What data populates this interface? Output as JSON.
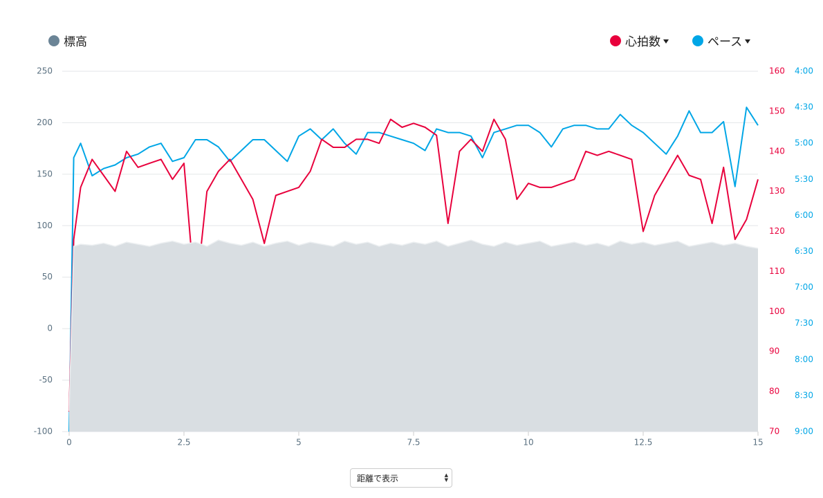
{
  "chart_data": {
    "type": "line",
    "x": [
      0,
      0.1,
      0.25,
      0.5,
      0.75,
      1,
      1.25,
      1.5,
      1.75,
      2,
      2.25,
      2.5,
      2.75,
      3,
      3.25,
      3.5,
      3.75,
      4,
      4.25,
      4.5,
      4.75,
      5,
      5.25,
      5.5,
      5.75,
      6,
      6.25,
      6.5,
      6.75,
      7,
      7.25,
      7.5,
      7.75,
      8,
      8.25,
      8.5,
      8.75,
      9,
      9.25,
      9.5,
      9.75,
      10,
      10.25,
      10.5,
      10.75,
      11,
      11.25,
      11.5,
      11.75,
      12,
      12.25,
      12.5,
      12.75,
      13,
      13.25,
      13.5,
      13.75,
      14,
      14.25,
      14.5,
      14.75,
      15
    ],
    "series": [
      {
        "name": "標高",
        "color": "#6b8496",
        "fill": "#d9dee2",
        "axis": "y",
        "area": true,
        "values": [
          -80,
          80,
          82,
          81,
          83,
          80,
          84,
          82,
          80,
          83,
          85,
          82,
          84,
          80,
          86,
          83,
          81,
          84,
          80,
          83,
          85,
          81,
          84,
          82,
          80,
          85,
          82,
          84,
          80,
          83,
          81,
          84,
          82,
          85,
          80,
          83,
          86,
          82,
          80,
          84,
          81,
          83,
          85,
          80,
          82,
          84,
          81,
          83,
          80,
          85,
          82,
          84,
          81,
          83,
          85,
          80,
          82,
          84,
          81,
          83,
          80,
          78
        ]
      },
      {
        "name": "心拍数",
        "color": "#e8003c",
        "axis": "y2",
        "values": [
          75,
          118,
          131,
          138,
          134,
          130,
          140,
          136,
          137,
          138,
          133,
          137,
          103,
          130,
          135,
          138,
          133,
          128,
          117,
          129,
          130,
          131,
          135,
          143,
          141,
          141,
          143,
          143,
          142,
          148,
          146,
          147,
          146,
          144,
          122,
          140,
          143,
          140,
          148,
          143,
          128,
          132,
          131,
          131,
          132,
          133,
          140,
          139,
          140,
          139,
          138,
          120,
          129,
          134,
          139,
          134,
          133,
          122,
          136,
          118,
          123,
          133
        ]
      },
      {
        "name": "ペース",
        "color": "#00a6e6",
        "axis": "y3",
        "values": [
          9.0,
          5.2,
          5.0,
          5.45,
          5.35,
          5.3,
          5.2,
          5.15,
          5.05,
          5.0,
          5.25,
          5.2,
          4.95,
          4.95,
          5.05,
          5.25,
          5.1,
          4.95,
          4.95,
          5.1,
          5.25,
          4.9,
          4.8,
          4.95,
          4.8,
          5.0,
          5.15,
          4.85,
          4.85,
          4.9,
          4.95,
          5.0,
          5.1,
          4.8,
          4.85,
          4.85,
          4.9,
          5.2,
          4.85,
          4.8,
          4.75,
          4.75,
          4.85,
          5.05,
          4.8,
          4.75,
          4.75,
          4.8,
          4.8,
          4.6,
          4.75,
          4.85,
          5.0,
          5.15,
          4.9,
          4.55,
          4.85,
          4.85,
          4.7,
          5.6,
          4.5,
          4.75
        ]
      }
    ],
    "xlim": [
      0,
      15
    ],
    "xticks": [
      0,
      2.5,
      5,
      7.5,
      10,
      12.5,
      15
    ],
    "ylim": [
      -100,
      250
    ],
    "yticks": [
      -100,
      -50,
      0,
      50,
      100,
      150,
      200,
      250
    ],
    "y2lim": [
      70,
      160
    ],
    "y2ticks": [
      70,
      80,
      90,
      100,
      110,
      120,
      130,
      140,
      150,
      160
    ],
    "y3lim": [
      9,
      4
    ],
    "y3ticks": [
      {
        "value": 9,
        "label": "9:00"
      },
      {
        "value": 8.5,
        "label": "8:30"
      },
      {
        "value": 8,
        "label": "8:00"
      },
      {
        "value": 7.5,
        "label": "7:30"
      },
      {
        "value": 7,
        "label": "7:00"
      },
      {
        "value": 6.5,
        "label": "6:30"
      },
      {
        "value": 6,
        "label": "6:00"
      },
      {
        "value": 5.5,
        "label": "5:30"
      },
      {
        "value": 5,
        "label": "5:00"
      },
      {
        "value": 4.5,
        "label": "4:30"
      },
      {
        "value": 4,
        "label": "4:00"
      }
    ],
    "grid": true
  },
  "select": {
    "label": "距離で表示"
  }
}
